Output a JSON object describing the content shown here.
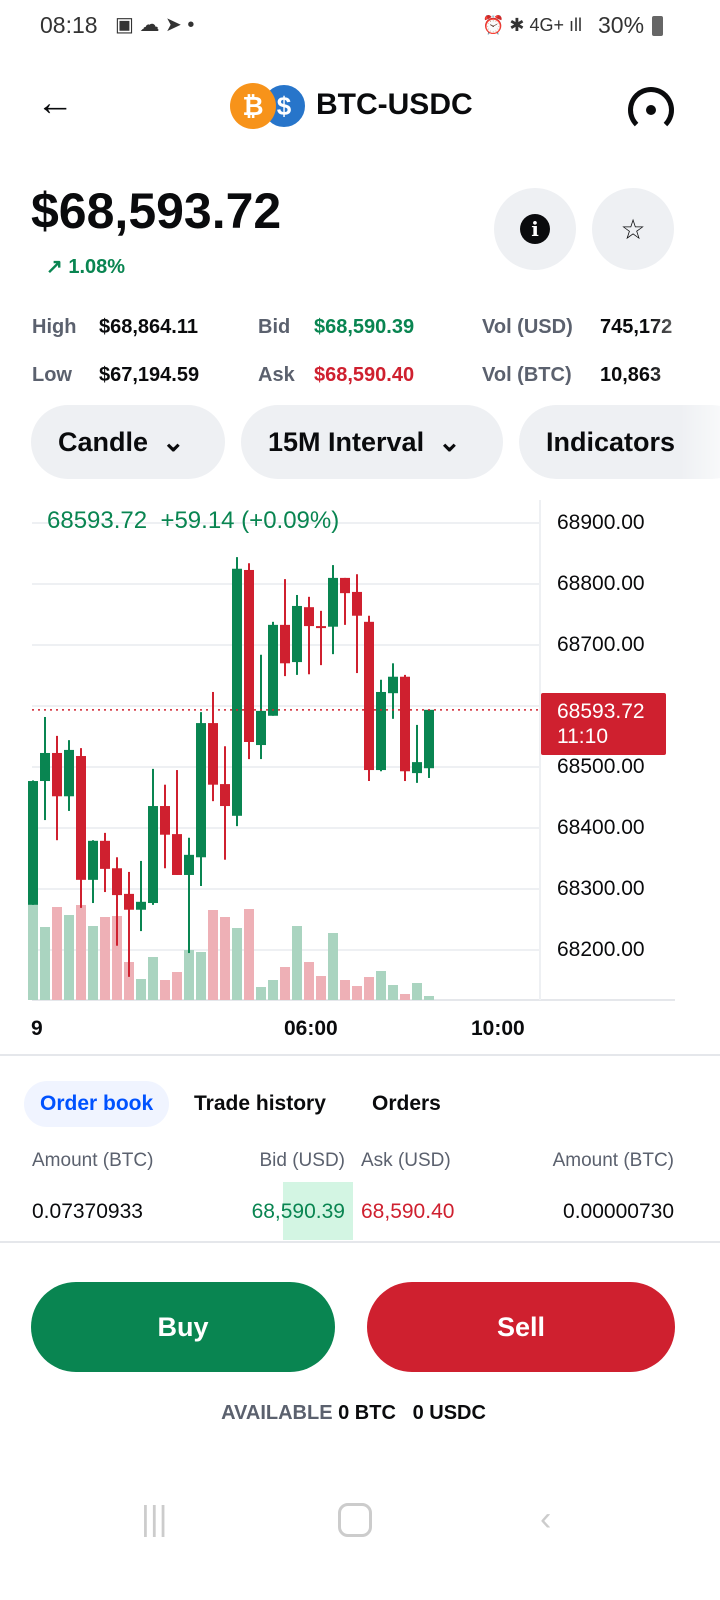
{
  "status_bar": {
    "time": "08:18",
    "battery": "30%",
    "network": "4G+"
  },
  "header": {
    "title": "BTC-USDC",
    "base_icon": "₿",
    "quote_icon": "$"
  },
  "price": {
    "value": "$68,593.72",
    "change": "1.08%",
    "change_icon": "↗"
  },
  "stats": {
    "high_label": "High",
    "high": "$68,864.11",
    "low_label": "Low",
    "low": "$67,194.59",
    "bid_label": "Bid",
    "bid": "$68,590.39",
    "ask_label": "Ask",
    "ask": "$68,590.40",
    "vol_usd_label": "Vol (USD)",
    "vol_usd": "745,172",
    "vol_btc_label": "Vol (BTC)",
    "vol_btc": "10,863"
  },
  "controls": {
    "chart_type": "Candle",
    "interval": "15M Interval",
    "indicators": "Indicators"
  },
  "colors": {
    "up": "#098551",
    "down": "#cf202f",
    "accent": "#0052ff"
  },
  "chart_data": {
    "type": "candlestick",
    "legend": "68593.72  +59.14 (+0.09%)",
    "ylim": [
      68150,
      68940
    ],
    "y_ticks": [
      "68900.00",
      "68800.00",
      "68700.00",
      "68600.00",
      "68500.00",
      "68400.00",
      "68300.00",
      "68200.00"
    ],
    "x_ticks": [
      "9",
      "06:00",
      "10:00"
    ],
    "current_price": "68593.72",
    "countdown": "11:10",
    "candles": [
      [
        68274,
        68478,
        68274,
        68477
      ],
      [
        68477,
        68582,
        68413,
        68523
      ],
      [
        68523,
        68551,
        68380,
        68452
      ],
      [
        68452,
        68544,
        68428,
        68528
      ],
      [
        68518,
        68531,
        68269,
        68315
      ],
      [
        68315,
        68380,
        68277,
        68379
      ],
      [
        68379,
        68392,
        68295,
        68333
      ],
      [
        68334,
        68352,
        68207,
        68290
      ],
      [
        68292,
        68328,
        68156,
        68266
      ],
      [
        68266,
        68346,
        68231,
        68279
      ],
      [
        68277,
        68497,
        68274,
        68436
      ],
      [
        68436,
        68471,
        68334,
        68389
      ],
      [
        68390,
        68495,
        68323,
        68323
      ],
      [
        68323,
        68384,
        68195,
        68356
      ],
      [
        68352,
        68590,
        68305,
        68572
      ],
      [
        68572,
        68623,
        68444,
        68471
      ],
      [
        68472,
        68534,
        68348,
        68436
      ],
      [
        68420,
        68844,
        68403,
        68825
      ],
      [
        68823,
        68834,
        68513,
        68541
      ],
      [
        68536,
        68684,
        68513,
        68592
      ],
      [
        68584,
        68738,
        68584,
        68733
      ],
      [
        68733,
        68808,
        68649,
        68670
      ],
      [
        68672,
        68782,
        68651,
        68764
      ],
      [
        68762,
        68779,
        68652,
        68731
      ],
      [
        68731,
        68756,
        68667,
        68730
      ],
      [
        68730,
        68831,
        68685,
        68810
      ],
      [
        68810,
        68810,
        68733,
        68785
      ],
      [
        68787,
        68816,
        68654,
        68748
      ],
      [
        68738,
        68748,
        68477,
        68495
      ],
      [
        68495,
        68643,
        68493,
        68623
      ],
      [
        68621,
        68670,
        68579,
        68648
      ],
      [
        68648,
        68651,
        68477,
        68493
      ],
      [
        68490,
        68569,
        68474,
        68508
      ],
      [
        68498,
        68594,
        68482,
        68593.72
      ]
    ],
    "volumes": [
      95,
      73,
      93,
      85,
      95,
      74,
      83,
      84,
      38,
      21,
      43,
      20,
      28,
      50,
      48,
      90,
      83,
      72,
      91,
      13,
      20,
      33,
      74,
      38,
      24,
      67,
      20,
      14,
      23,
      29,
      15,
      6,
      17,
      4
    ]
  },
  "tabs": [
    "Order book",
    "Trade history",
    "Orders"
  ],
  "order_book": {
    "headers": [
      "Amount (BTC)",
      "Bid (USD)",
      "Ask (USD)",
      "Amount (BTC)"
    ],
    "row": [
      "0.07370933",
      "68,590.39",
      "68,590.40",
      "0.00000730"
    ]
  },
  "actions": {
    "buy": "Buy",
    "sell": "Sell"
  },
  "available": {
    "label": "AVAILABLE",
    "btc": "0 BTC",
    "usdc": "0 USDC"
  }
}
